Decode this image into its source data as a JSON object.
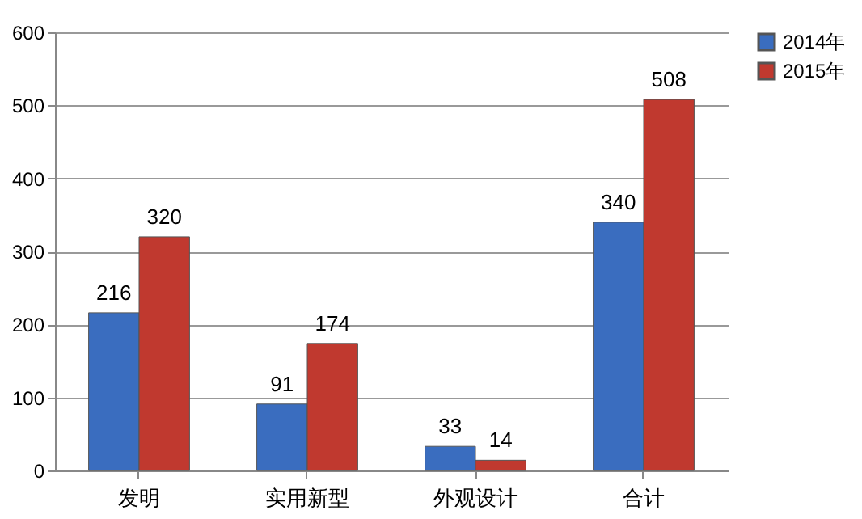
{
  "chart_data": {
    "type": "bar",
    "categories": [
      "发明",
      "实用新型",
      "外观设计",
      "合计"
    ],
    "series": [
      {
        "name": "2014年",
        "color": "#3a6dbf",
        "values": [
          216,
          91,
          33,
          340
        ]
      },
      {
        "name": "2015年",
        "color": "#c0392f",
        "values": [
          320,
          174,
          14,
          508
        ]
      }
    ],
    "ylim": [
      0,
      600
    ],
    "yticks": [
      0,
      100,
      200,
      300,
      400,
      500,
      600
    ],
    "grid": "y",
    "legend": "right",
    "data_labels": true
  }
}
